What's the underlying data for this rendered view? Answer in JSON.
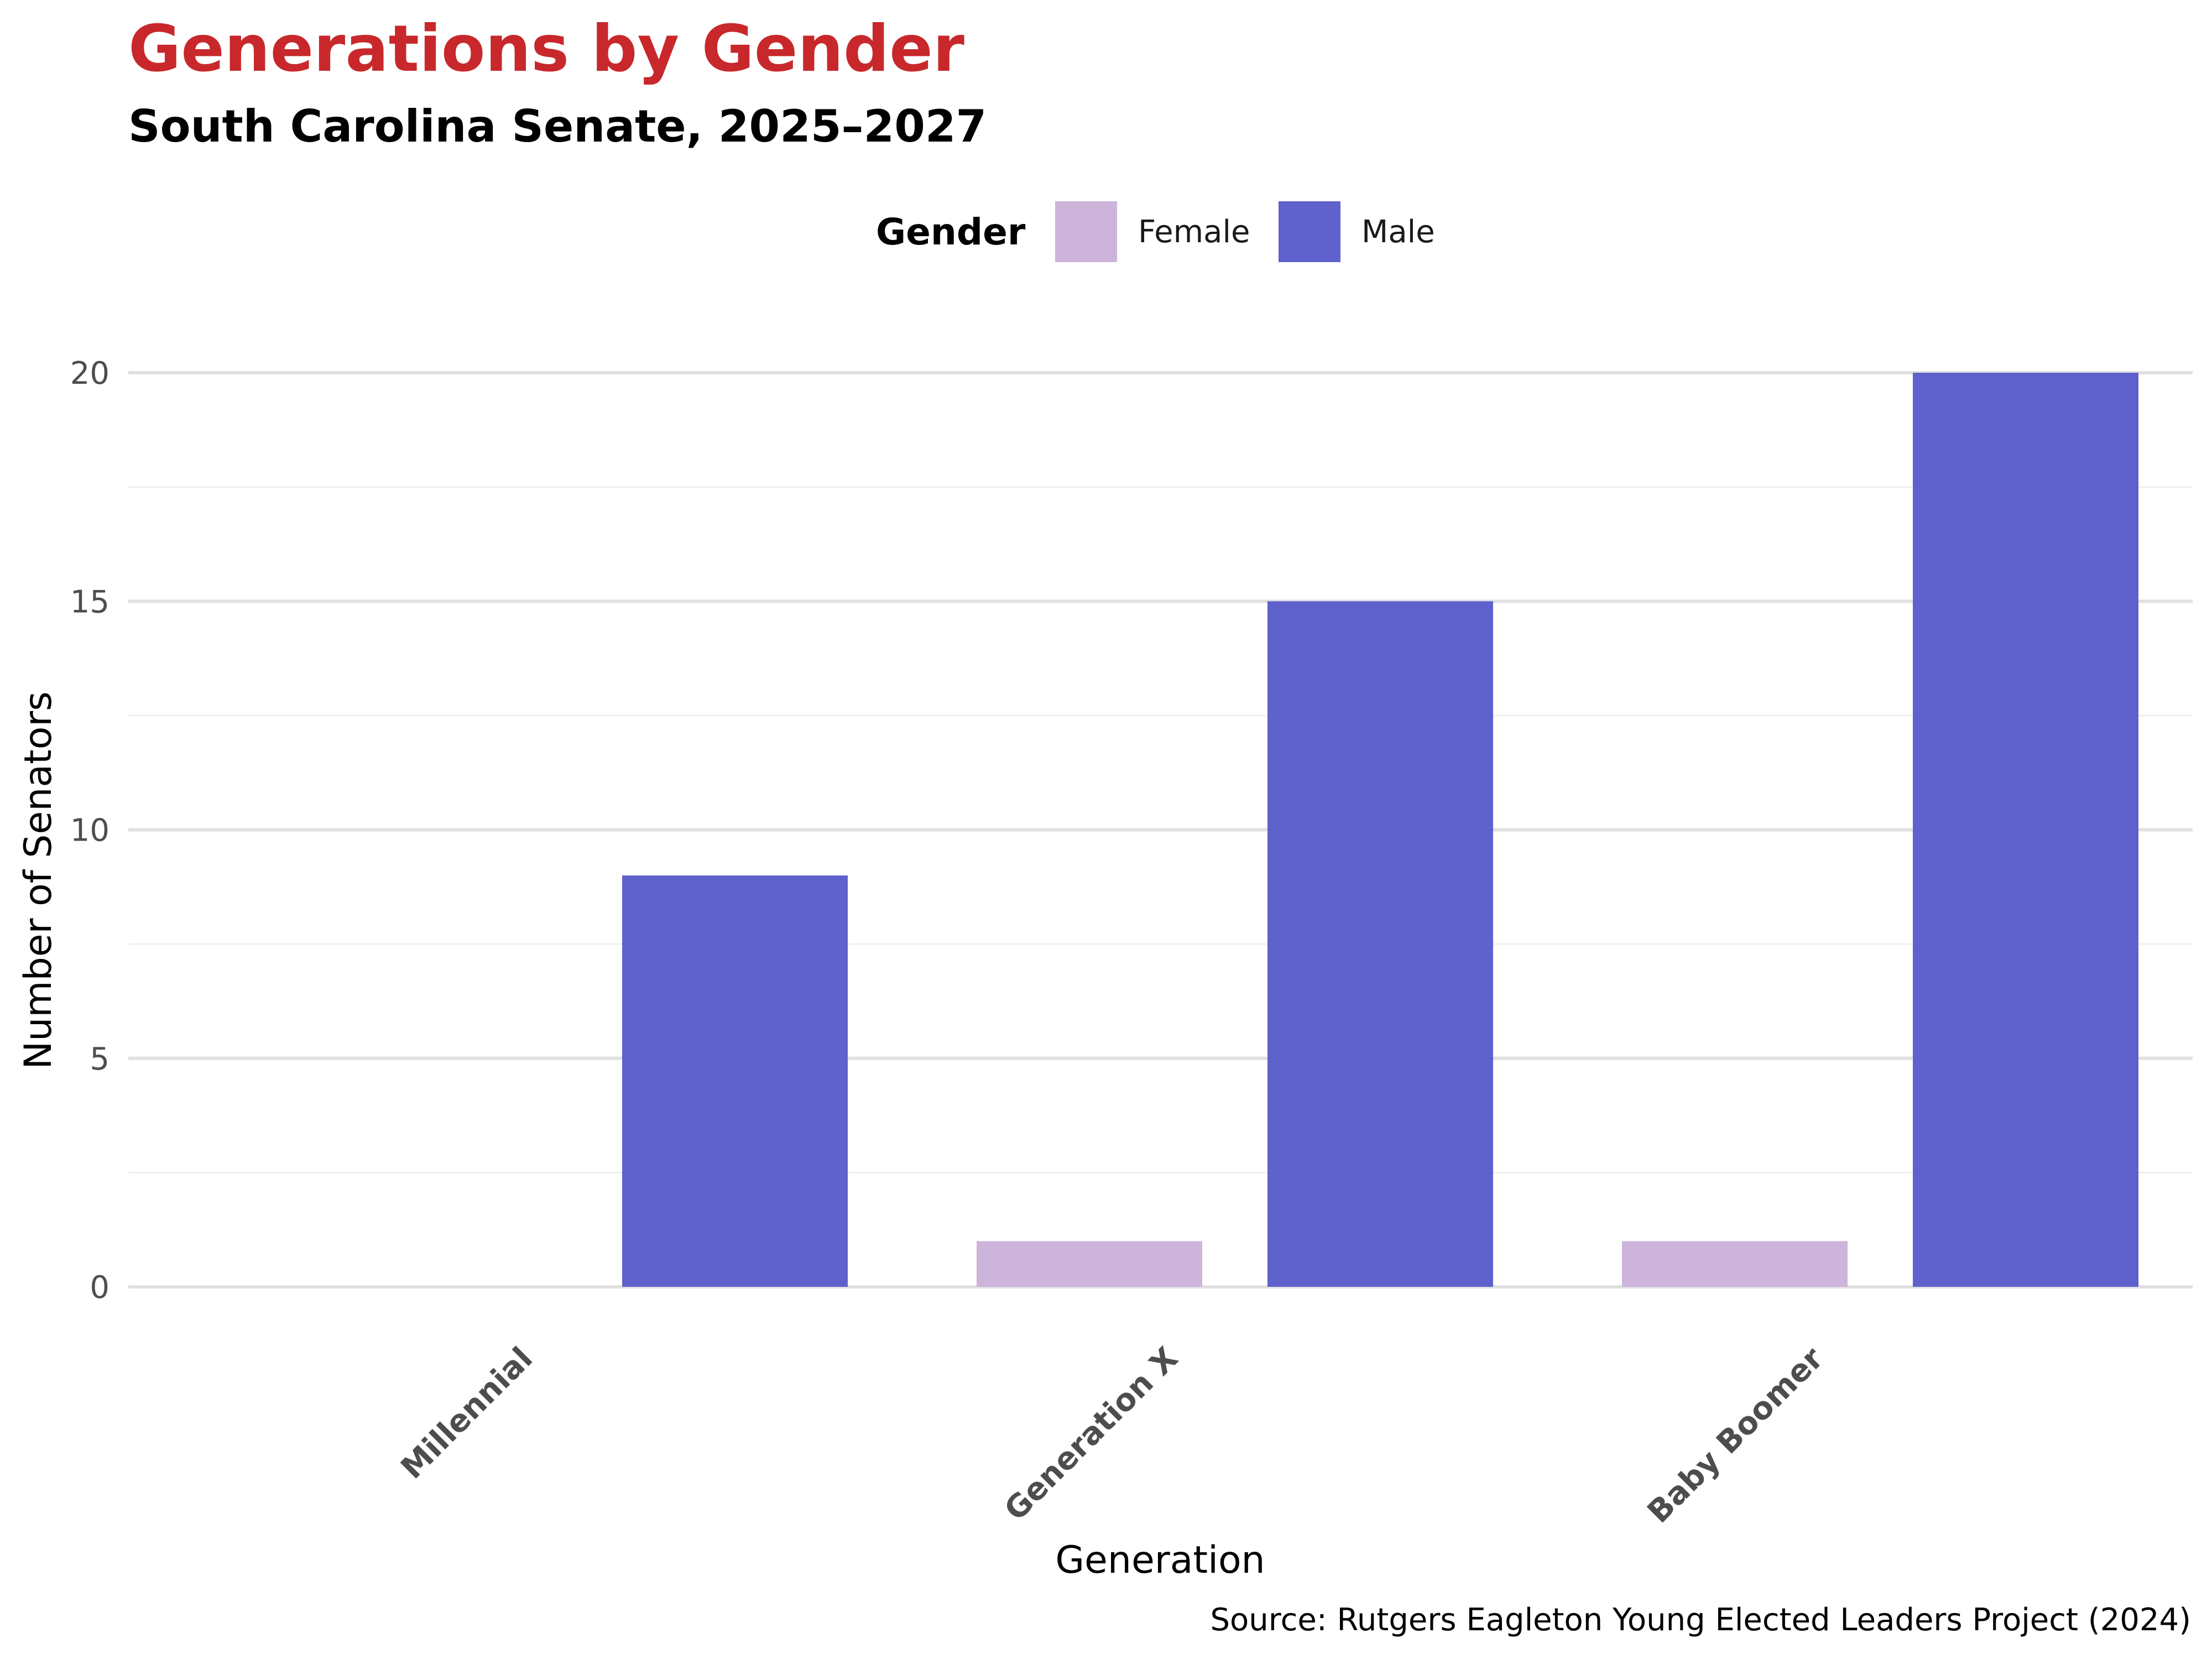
{
  "colors": {
    "title": "#c8282b",
    "female": "#cdb4db",
    "male": "#5f61cd",
    "grid_major": "#e0e0e0",
    "grid_minor": "#efefef"
  },
  "chart_data": {
    "type": "bar",
    "title": "Generations by Gender",
    "subtitle": "South Carolina Senate, 2025–2027",
    "xlabel": "Generation",
    "ylabel": "Number of Senators",
    "caption": "Source: Rutgers Eagleton Young Elected Leaders Project (2024)",
    "categories": [
      "Millennial",
      "Generation X",
      "Baby Boomer"
    ],
    "series": [
      {
        "name": "Female",
        "values": [
          0,
          1,
          1
        ]
      },
      {
        "name": "Male",
        "values": [
          9,
          15,
          20
        ]
      }
    ],
    "ylim": [
      0,
      20
    ],
    "yticks": [
      "0",
      "5",
      "10",
      "15",
      "20"
    ],
    "grid": true,
    "legend": {
      "title": "Gender",
      "placement": "top-center",
      "entries": [
        "Female",
        "Male"
      ]
    }
  }
}
